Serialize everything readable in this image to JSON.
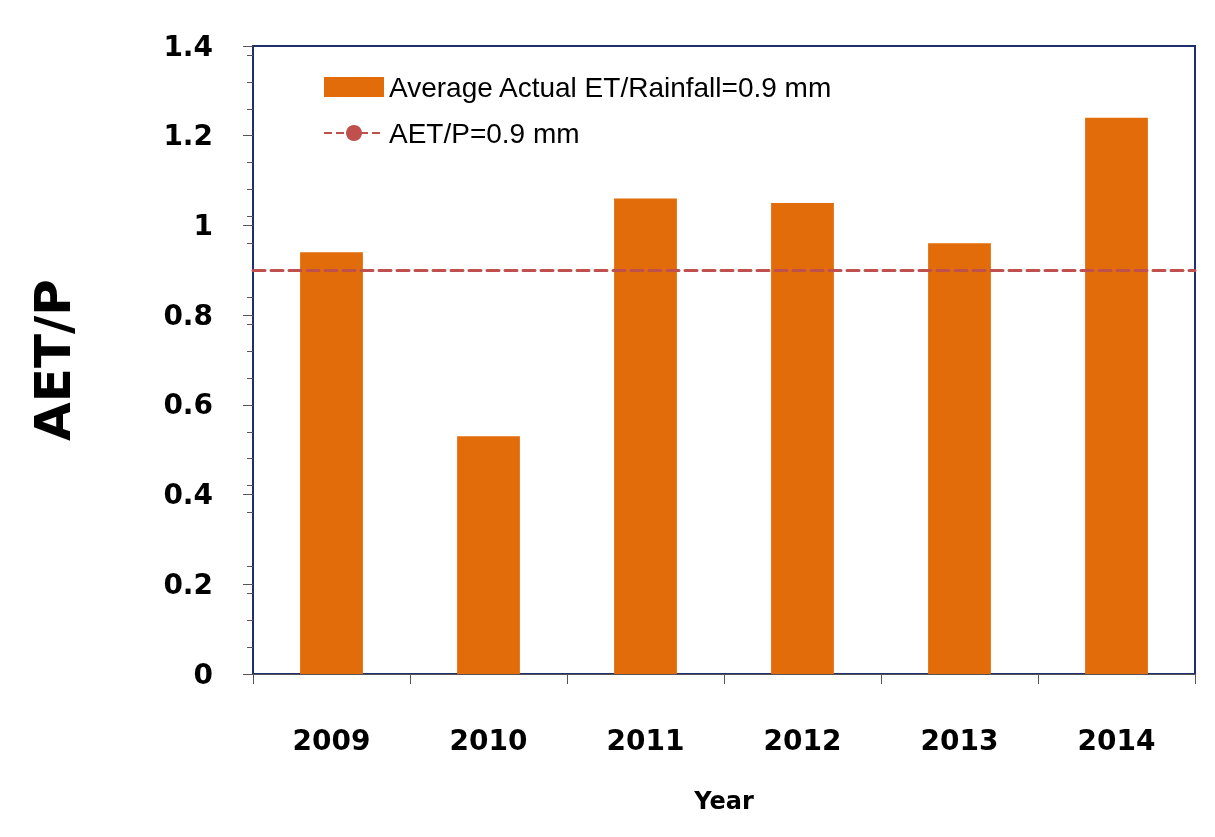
{
  "chart_data": {
    "type": "bar",
    "xlabel": "Year",
    "ylabel": "AET/P",
    "categories": [
      "2009",
      "2010",
      "2011",
      "2012",
      "2013",
      "2014"
    ],
    "series": [
      {
        "name": "Average Actual ET/Rainfall=0.9 mm",
        "color": "#e36c0a",
        "values": [
          0.94,
          0.53,
          1.06,
          1.05,
          0.96,
          1.24
        ]
      }
    ],
    "ylim": [
      0,
      1.4
    ],
    "yticks": [
      0,
      0.2,
      0.4,
      0.6,
      0.8,
      1,
      1.2,
      1.4
    ],
    "ref_lines": [
      {
        "axis": "y",
        "value": 0.9,
        "label": "AET/P=0.9 mm",
        "color": "#c0504d",
        "line_style": "dashed"
      }
    ],
    "grid": false,
    "legend": "top left"
  }
}
